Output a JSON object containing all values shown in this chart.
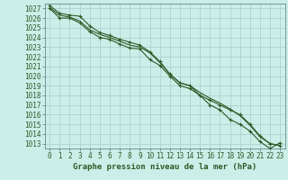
{
  "title": "Graphe pression niveau de la mer (hPa)",
  "bg_color": "#cceee8",
  "grid_color": "#aacccc",
  "line_color": "#2d5a27",
  "marker_color": "#2d5a27",
  "ylim": [
    1012.5,
    1027.5
  ],
  "xlim": [
    -0.5,
    23.5
  ],
  "yticks": [
    1013,
    1014,
    1015,
    1016,
    1017,
    1018,
    1019,
    1020,
    1021,
    1022,
    1023,
    1024,
    1025,
    1026,
    1027
  ],
  "xticks": [
    0,
    1,
    2,
    3,
    4,
    5,
    6,
    7,
    8,
    9,
    10,
    11,
    12,
    13,
    14,
    15,
    16,
    17,
    18,
    19,
    20,
    21,
    22,
    23
  ],
  "series": [
    [
      1027.3,
      1026.5,
      1026.3,
      1026.2,
      1025.2,
      1024.5,
      1024.2,
      1023.8,
      1023.5,
      1023.2,
      1022.5,
      1021.5,
      1020.2,
      1019.3,
      1019.0,
      1018.0,
      1017.5,
      1017.0,
      1016.5,
      1016.0,
      1015.0,
      1013.8,
      1013.0,
      1012.8
    ],
    [
      1027.1,
      1026.3,
      1026.1,
      1025.7,
      1024.8,
      1024.3,
      1024.0,
      1023.6,
      1023.2,
      1023.0,
      1022.4,
      1021.4,
      1020.2,
      1019.3,
      1019.0,
      1018.3,
      1017.7,
      1017.2,
      1016.6,
      1015.9,
      1014.9,
      1013.7,
      1013.0,
      1012.8
    ],
    [
      1027.0,
      1026.0,
      1026.0,
      1025.5,
      1024.6,
      1024.0,
      1023.8,
      1023.3,
      1022.9,
      1022.8,
      1021.7,
      1021.1,
      1020.0,
      1019.0,
      1018.7,
      1018.0,
      1017.0,
      1016.5,
      1015.5,
      1015.0,
      1014.3,
      1013.2,
      1012.5,
      1013.1
    ]
  ],
  "has_markers": [
    true,
    false,
    true
  ],
  "marker_size": 2.5,
  "line_width": 0.8,
  "tick_fontsize": 5.5,
  "title_fontsize": 6.5
}
